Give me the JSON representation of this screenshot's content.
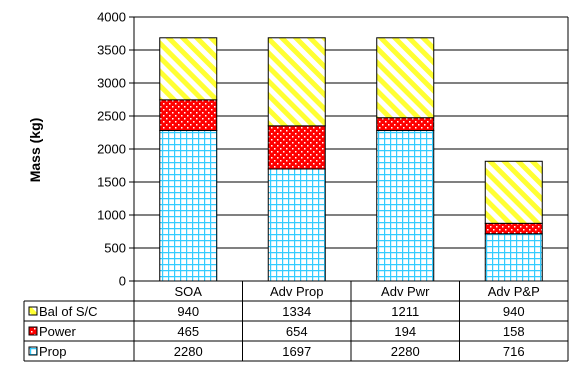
{
  "chart_data": {
    "type": "bar",
    "stacked": true,
    "ylabel": "Mass (kg)",
    "ylim": [
      0,
      4000
    ],
    "yticks": [
      0,
      500,
      1000,
      1500,
      2000,
      2500,
      3000,
      3500,
      4000
    ],
    "grid": true,
    "categories": [
      "SOA",
      "Adv Prop",
      "Adv Pwr",
      "Adv P&P"
    ],
    "series": [
      {
        "name": "Prop",
        "values": [
          2280,
          1697,
          2280,
          716
        ],
        "color": "#33ccff",
        "pattern": "grid"
      },
      {
        "name": "Power",
        "values": [
          465,
          654,
          194,
          158
        ],
        "color": "#ff0000",
        "pattern": "dots"
      },
      {
        "name": "Bal of S/C",
        "values": [
          940,
          1334,
          1211,
          940
        ],
        "color": "#ffff33",
        "pattern": "diagonal-stripes"
      }
    ],
    "legend": "data-table",
    "table_rows_order": [
      "Bal of S/C",
      "Power",
      "Prop"
    ]
  }
}
